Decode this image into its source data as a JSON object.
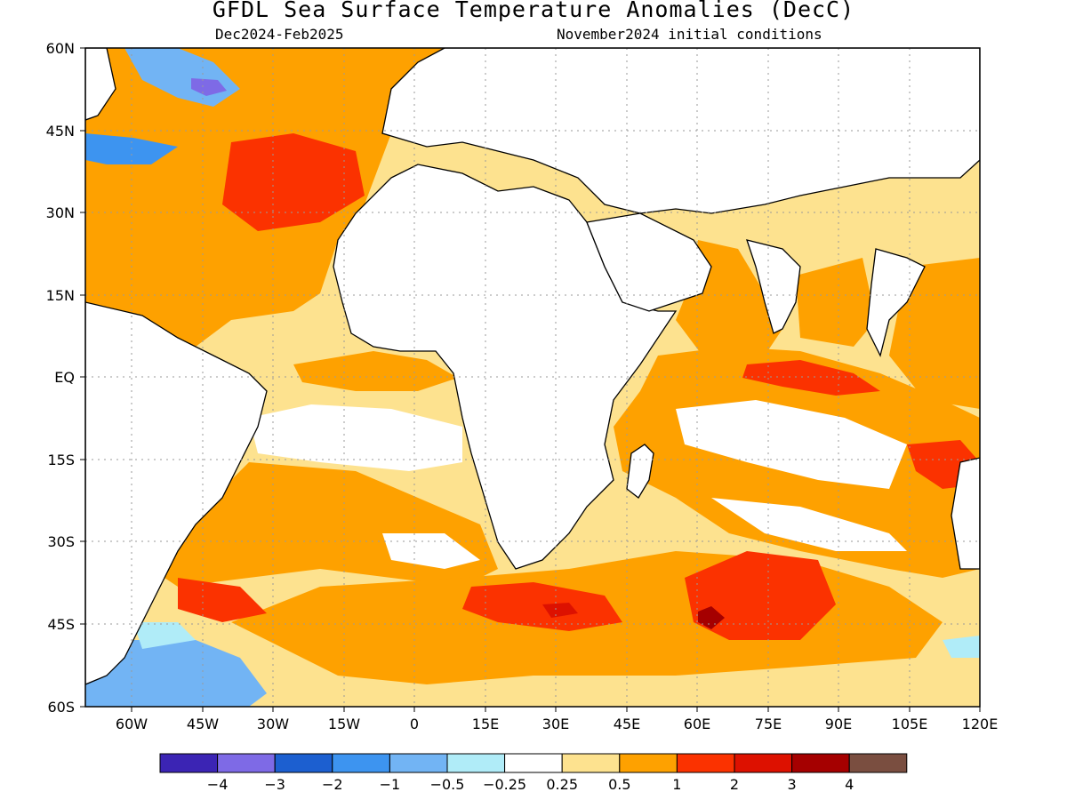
{
  "title": "GFDL Sea Surface Temperature Anomalies (DecC)",
  "subtitle_left": "Dec2024-Feb2025",
  "subtitle_right": "November2024 initial conditions",
  "lat_labels": [
    "60N",
    "45N",
    "30N",
    "15N",
    "EQ",
    "15S",
    "30S",
    "45S",
    "60S"
  ],
  "lon_labels": [
    "60W",
    "45W",
    "30W",
    "15W",
    "0",
    "15E",
    "30E",
    "45E",
    "60E",
    "75E",
    "90E",
    "105E",
    "120E"
  ],
  "colorbar": {
    "colors": [
      "#3b24b4",
      "#7e6ae6",
      "#1c5fd0",
      "#3d94f0",
      "#72b4f4",
      "#b0ecf8",
      "#ffffff",
      "#fde28f",
      "#fea100",
      "#fb3200",
      "#dd1100",
      "#a50000",
      "#7a4e40"
    ],
    "labels": [
      "-4",
      "-3",
      "-2",
      "-1",
      "-0.5",
      "-0.25",
      "0.25",
      "0.5",
      "1",
      "2",
      "3",
      "4"
    ]
  },
  "chart_data": {
    "type": "heatmap",
    "title": "GFDL Sea Surface Temperature Anomalies (DecC)",
    "period": "Dec2024-Feb2025",
    "initial_conditions": "November2024 initial conditions",
    "lat_range": [
      "60S",
      "60N"
    ],
    "lon_range": [
      "70W",
      "120E"
    ],
    "levels": [
      -4,
      -3,
      -2,
      -1,
      -0.5,
      -0.25,
      0.25,
      0.5,
      1,
      2,
      3,
      4
    ],
    "grid": true
  }
}
